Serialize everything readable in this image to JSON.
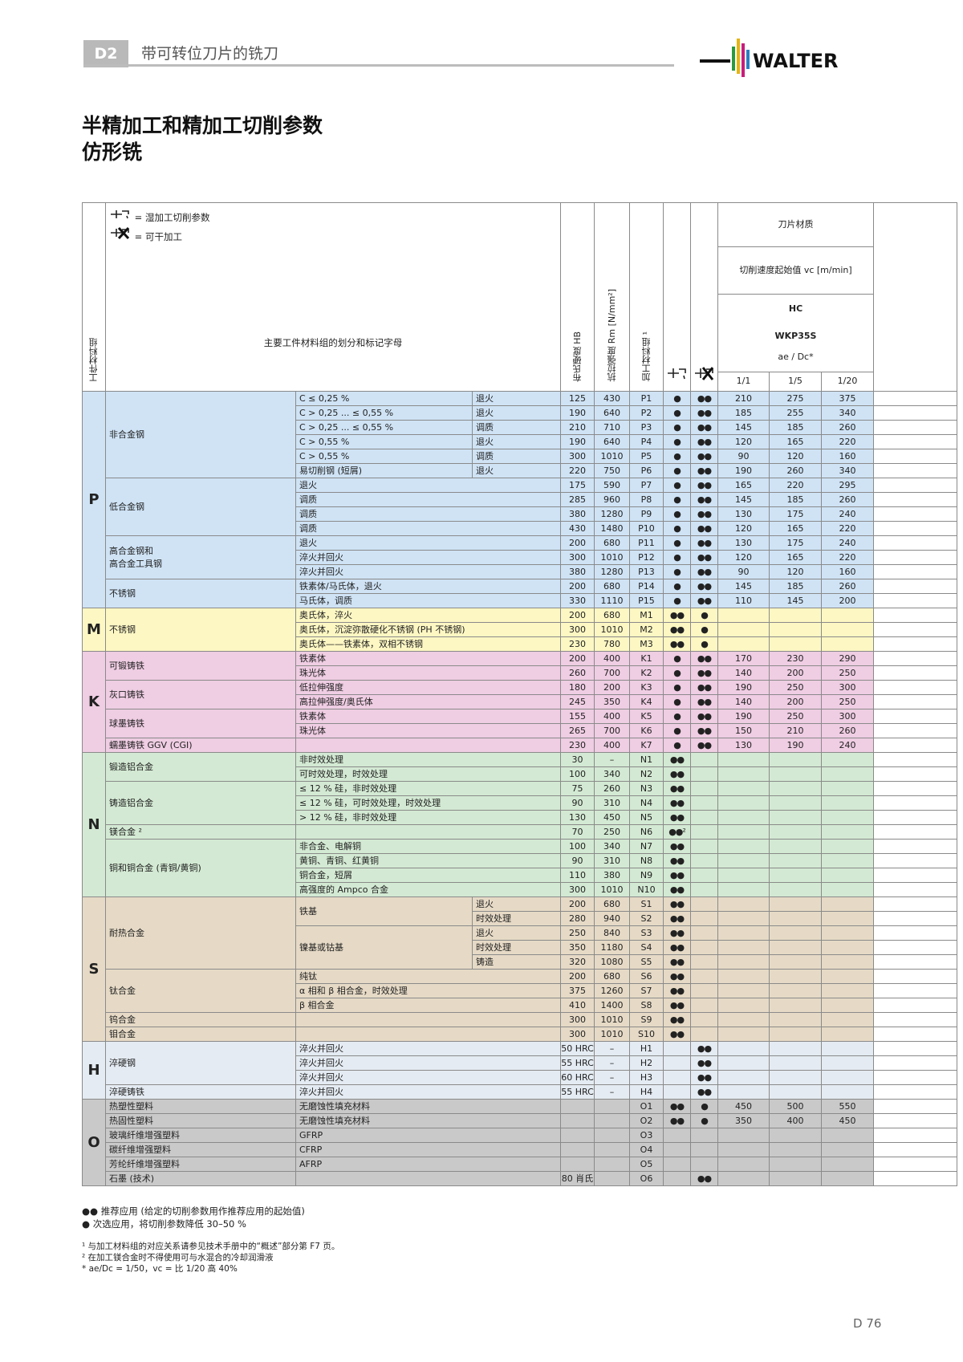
{
  "header": {
    "section_code": "D2",
    "section_title": "带可转位刀片的铣刀",
    "logo_text": "WALTER"
  },
  "title": {
    "line1": "半精加工和精加工切削参数",
    "line2": "仿形铣"
  },
  "key": {
    "wet": "= 湿加工切削参数",
    "dry": "= 可干加工"
  },
  "columns": {
    "material_group": "工件材料组",
    "main": "主要工件材料组的划分和标记字母",
    "hardness": "布氏硬度 HB",
    "strength": "抗拉强度 Rm [N/mm²]",
    "code": "加工材料组 ¹",
    "grade_title": "刀片材质",
    "speed_title": "切削速度起始值 vc [m/min]",
    "grade1": "HC",
    "grade2": "WKP35S",
    "ratio": "ae / Dc*",
    "r1": "1/1",
    "r2": "1/5",
    "r3": "1/20"
  },
  "groups": [
    {
      "letter": "P",
      "class": "gP",
      "rows": [
        {
          "sub": "非合金钢",
          "d1": "C ≤ 0,25 %",
          "d2": "退火",
          "hb": "125",
          "rm": "430",
          "code": "P1",
          "wet": "●",
          "dry": "●●",
          "v1": "210",
          "v5": "275",
          "v20": "375"
        },
        {
          "d1": "C > 0,25 ... ≤ 0,55 %",
          "d2": "退火",
          "hb": "190",
          "rm": "640",
          "code": "P2",
          "wet": "●",
          "dry": "●●",
          "v1": "185",
          "v5": "255",
          "v20": "340"
        },
        {
          "d1": "C > 0,25 ... ≤ 0,55 %",
          "d2": "调质",
          "hb": "210",
          "rm": "710",
          "code": "P3",
          "wet": "●",
          "dry": "●●",
          "v1": "145",
          "v5": "185",
          "v20": "260"
        },
        {
          "d1": "C > 0,55 %",
          "d2": "退火",
          "hb": "190",
          "rm": "640",
          "code": "P4",
          "wet": "●",
          "dry": "●●",
          "v1": "120",
          "v5": "165",
          "v20": "220"
        },
        {
          "d1": "C > 0,55 %",
          "d2": "调质",
          "hb": "300",
          "rm": "1010",
          "code": "P5",
          "wet": "●",
          "dry": "●●",
          "v1": "90",
          "v5": "120",
          "v20": "160"
        },
        {
          "d1": "易切削钢 (短屑)",
          "d2": "退火",
          "hb": "220",
          "rm": "750",
          "code": "P6",
          "wet": "●",
          "dry": "●●",
          "v1": "190",
          "v5": "260",
          "v20": "340"
        },
        {
          "sub": "低合金钢",
          "d1": "退火",
          "hb": "175",
          "rm": "590",
          "code": "P7",
          "wet": "●",
          "dry": "●●",
          "v1": "165",
          "v5": "220",
          "v20": "295"
        },
        {
          "d1": "调质",
          "hb": "285",
          "rm": "960",
          "code": "P8",
          "wet": "●",
          "dry": "●●",
          "v1": "145",
          "v5": "185",
          "v20": "260"
        },
        {
          "d1": "调质",
          "hb": "380",
          "rm": "1280",
          "code": "P9",
          "wet": "●",
          "dry": "●●",
          "v1": "130",
          "v5": "175",
          "v20": "240"
        },
        {
          "d1": "调质",
          "hb": "430",
          "rm": "1480",
          "code": "P10",
          "wet": "●",
          "dry": "●●",
          "v1": "120",
          "v5": "165",
          "v20": "220"
        },
        {
          "sub": "高合金钢和\n高合金工具钢",
          "d1": "退火",
          "hb": "200",
          "rm": "680",
          "code": "P11",
          "wet": "●",
          "dry": "●●",
          "v1": "130",
          "v5": "175",
          "v20": "240"
        },
        {
          "d1": "淬火并回火",
          "hb": "300",
          "rm": "1010",
          "code": "P12",
          "wet": "●",
          "dry": "●●",
          "v1": "120",
          "v5": "165",
          "v20": "220"
        },
        {
          "d1": "淬火并回火",
          "hb": "380",
          "rm": "1280",
          "code": "P13",
          "wet": "●",
          "dry": "●●",
          "v1": "90",
          "v5": "120",
          "v20": "160"
        },
        {
          "sub": "不锈钢",
          "d1": "铁素体/马氏体，退火",
          "hb": "200",
          "rm": "680",
          "code": "P14",
          "wet": "●",
          "dry": "●●",
          "v1": "145",
          "v5": "185",
          "v20": "260"
        },
        {
          "d1": "马氏体，调质",
          "hb": "330",
          "rm": "1110",
          "code": "P15",
          "wet": "●",
          "dry": "●●",
          "v1": "110",
          "v5": "145",
          "v20": "200"
        }
      ]
    },
    {
      "letter": "M",
      "class": "gM",
      "rows": [
        {
          "sub": "不锈钢",
          "d1": "奥氏体，淬火",
          "hb": "200",
          "rm": "680",
          "code": "M1",
          "wet": "●●",
          "dry": "●",
          "v1": "",
          "v5": "",
          "v20": ""
        },
        {
          "d1": "奥氏体，沉淀弥散硬化不锈钢 (PH 不锈钢)",
          "hb": "300",
          "rm": "1010",
          "code": "M2",
          "wet": "●●",
          "dry": "●",
          "v1": "",
          "v5": "",
          "v20": ""
        },
        {
          "d1": "奥氏体——铁素体，双相不锈钢",
          "hb": "230",
          "rm": "780",
          "code": "M3",
          "wet": "●●",
          "dry": "●",
          "v1": "",
          "v5": "",
          "v20": ""
        }
      ]
    },
    {
      "letter": "K",
      "class": "gK",
      "rows": [
        {
          "sub": "可锻铸铁",
          "d1": "铁素体",
          "hb": "200",
          "rm": "400",
          "code": "K1",
          "wet": "●",
          "dry": "●●",
          "v1": "170",
          "v5": "230",
          "v20": "290"
        },
        {
          "d1": "珠光体",
          "hb": "260",
          "rm": "700",
          "code": "K2",
          "wet": "●",
          "dry": "●●",
          "v1": "140",
          "v5": "200",
          "v20": "250"
        },
        {
          "sub": "灰口铸铁",
          "d1": "低拉伸强度",
          "hb": "180",
          "rm": "200",
          "code": "K3",
          "wet": "●",
          "dry": "●●",
          "v1": "190",
          "v5": "250",
          "v20": "300"
        },
        {
          "d1": "高拉伸强度/奥氏体",
          "hb": "245",
          "rm": "350",
          "code": "K4",
          "wet": "●",
          "dry": "●●",
          "v1": "140",
          "v5": "200",
          "v20": "250"
        },
        {
          "sub": "球墨铸铁",
          "d1": "铁素体",
          "hb": "155",
          "rm": "400",
          "code": "K5",
          "wet": "●",
          "dry": "●●",
          "v1": "190",
          "v5": "250",
          "v20": "300"
        },
        {
          "d1": "珠光体",
          "hb": "265",
          "rm": "700",
          "code": "K6",
          "wet": "●",
          "dry": "●●",
          "v1": "150",
          "v5": "210",
          "v20": "260"
        },
        {
          "sub": "蠕墨铸铁 GGV (CGI)",
          "d1": "",
          "hb": "230",
          "rm": "400",
          "code": "K7",
          "wet": "●",
          "dry": "●●",
          "v1": "130",
          "v5": "190",
          "v20": "240"
        }
      ]
    },
    {
      "letter": "N",
      "class": "gN",
      "rows": [
        {
          "sub": "锻造铝合金",
          "d1": "非时效处理",
          "hb": "30",
          "rm": "–",
          "code": "N1",
          "wet": "●●",
          "dry": "",
          "v1": "",
          "v5": "",
          "v20": ""
        },
        {
          "d1": "可时效处理，时效处理",
          "hb": "100",
          "rm": "340",
          "code": "N2",
          "wet": "●●",
          "dry": "",
          "v1": "",
          "v5": "",
          "v20": ""
        },
        {
          "sub": "铸造铝合金",
          "d1": "≤ 12 % 硅，非时效处理",
          "hb": "75",
          "rm": "260",
          "code": "N3",
          "wet": "●●",
          "dry": "",
          "v1": "",
          "v5": "",
          "v20": ""
        },
        {
          "d1": "≤ 12 % 硅，可时效处理，时效处理",
          "hb": "90",
          "rm": "310",
          "code": "N4",
          "wet": "●●",
          "dry": "",
          "v1": "",
          "v5": "",
          "v20": ""
        },
        {
          "d1": "> 12 % 硅，非时效处理",
          "hb": "130",
          "rm": "450",
          "code": "N5",
          "wet": "●●",
          "dry": "",
          "v1": "",
          "v5": "",
          "v20": ""
        },
        {
          "sub": "镁合金 ²",
          "d1": "",
          "hb": "70",
          "rm": "250",
          "code": "N6",
          "wet": "●●²",
          "dry": "",
          "v1": "",
          "v5": "",
          "v20": ""
        },
        {
          "sub": "铜和铜合金 (青铜/黄铜)",
          "d1": "非合金、电解铜",
          "hb": "100",
          "rm": "340",
          "code": "N7",
          "wet": "●●",
          "dry": "",
          "v1": "",
          "v5": "",
          "v20": ""
        },
        {
          "d1": "黄铜、青铜、红黄铜",
          "hb": "90",
          "rm": "310",
          "code": "N8",
          "wet": "●●",
          "dry": "",
          "v1": "",
          "v5": "",
          "v20": ""
        },
        {
          "d1": "铜合金，短屑",
          "hb": "110",
          "rm": "380",
          "code": "N9",
          "wet": "●●",
          "dry": "",
          "v1": "",
          "v5": "",
          "v20": ""
        },
        {
          "d1": "高强度的 Ampco 合金",
          "hb": "300",
          "rm": "1010",
          "code": "N10",
          "wet": "●●",
          "dry": "",
          "v1": "",
          "v5": "",
          "v20": ""
        }
      ]
    },
    {
      "letter": "S",
      "class": "gS",
      "rows": [
        {
          "sub": "耐热合金",
          "d1": "铁基",
          "d2": "退火",
          "hb": "200",
          "rm": "680",
          "code": "S1",
          "wet": "●●",
          "dry": "",
          "v1": "",
          "v5": "",
          "v20": ""
        },
        {
          "d2": "时效处理",
          "hb": "280",
          "rm": "940",
          "code": "S2",
          "wet": "●●",
          "dry": "",
          "v1": "",
          "v5": "",
          "v20": ""
        },
        {
          "d1": "镍基或钴基",
          "d2": "退火",
          "hb": "250",
          "rm": "840",
          "code": "S3",
          "wet": "●●",
          "dry": "",
          "v1": "",
          "v5": "",
          "v20": ""
        },
        {
          "d2": "时效处理",
          "hb": "350",
          "rm": "1180",
          "code": "S4",
          "wet": "●●",
          "dry": "",
          "v1": "",
          "v5": "",
          "v20": ""
        },
        {
          "d2": "铸造",
          "hb": "320",
          "rm": "1080",
          "code": "S5",
          "wet": "●●",
          "dry": "",
          "v1": "",
          "v5": "",
          "v20": ""
        },
        {
          "sub": "钛合金",
          "d1": "纯钛",
          "hb": "200",
          "rm": "680",
          "code": "S6",
          "wet": "●●",
          "dry": "",
          "v1": "",
          "v5": "",
          "v20": ""
        },
        {
          "d1": "α 相和 β 相合金，时效处理",
          "hb": "375",
          "rm": "1260",
          "code": "S7",
          "wet": "●●",
          "dry": "",
          "v1": "",
          "v5": "",
          "v20": ""
        },
        {
          "d1": "β 相合金",
          "hb": "410",
          "rm": "1400",
          "code": "S8",
          "wet": "●●",
          "dry": "",
          "v1": "",
          "v5": "",
          "v20": ""
        },
        {
          "sub": "钨合金",
          "d1": "",
          "hb": "300",
          "rm": "1010",
          "code": "S9",
          "wet": "●●",
          "dry": "",
          "v1": "",
          "v5": "",
          "v20": ""
        },
        {
          "sub": "钼合金",
          "d1": "",
          "hb": "300",
          "rm": "1010",
          "code": "S10",
          "wet": "●●",
          "dry": "",
          "v1": "",
          "v5": "",
          "v20": ""
        }
      ]
    },
    {
      "letter": "H",
      "class": "gH",
      "rows": [
        {
          "sub": "淬硬钢",
          "d1": "淬火并回火",
          "hb": "50 HRC",
          "rm": "–",
          "code": "H1",
          "wet": "",
          "dry": "●●",
          "v1": "",
          "v5": "",
          "v20": ""
        },
        {
          "d1": "淬火并回火",
          "hb": "55 HRC",
          "rm": "–",
          "code": "H2",
          "wet": "",
          "dry": "●●",
          "v1": "",
          "v5": "",
          "v20": ""
        },
        {
          "d1": "淬火并回火",
          "hb": "60 HRC",
          "rm": "–",
          "code": "H3",
          "wet": "",
          "dry": "●●",
          "v1": "",
          "v5": "",
          "v20": ""
        },
        {
          "sub": "淬硬铸铁",
          "d1": "淬火并回火",
          "hb": "55 HRC",
          "rm": "–",
          "code": "H4",
          "wet": "",
          "dry": "●●",
          "v1": "",
          "v5": "",
          "v20": ""
        }
      ]
    },
    {
      "letter": "O",
      "class": "gO",
      "rows": [
        {
          "sub": "热塑性塑料",
          "d1": "无磨蚀性填充材料",
          "hb": "",
          "rm": "",
          "code": "O1",
          "wet": "●●",
          "dry": "●",
          "v1": "450",
          "v5": "500",
          "v20": "550"
        },
        {
          "sub": "热固性塑料",
          "d1": "无磨蚀性填充材料",
          "hb": "",
          "rm": "",
          "code": "O2",
          "wet": "●●",
          "dry": "●",
          "v1": "350",
          "v5": "400",
          "v20": "450"
        },
        {
          "sub": "玻璃纤维增强塑料",
          "d1": "GFRP",
          "hb": "",
          "rm": "",
          "code": "O3",
          "wet": "",
          "dry": "",
          "v1": "",
          "v5": "",
          "v20": ""
        },
        {
          "sub": "碳纤维增强塑料",
          "d1": "CFRP",
          "hb": "",
          "rm": "",
          "code": "O4",
          "wet": "",
          "dry": "",
          "v1": "",
          "v5": "",
          "v20": ""
        },
        {
          "sub": "芳纶纤维增强塑料",
          "d1": "AFRP",
          "hb": "",
          "rm": "",
          "code": "O5",
          "wet": "",
          "dry": "",
          "v1": "",
          "v5": "",
          "v20": ""
        },
        {
          "sub": "石墨 (技术)",
          "d1": "",
          "hb": "80 肖氏",
          "rm": "",
          "code": "O6",
          "wet": "",
          "dry": "●●",
          "v1": "",
          "v5": "",
          "v20": ""
        }
      ]
    }
  ],
  "legend": {
    "primary": "●●  推荐应用 (给定的切削参数用作推荐应用的起始值)",
    "secondary": "●    次选应用，将切削参数降低 30–50 %"
  },
  "footnotes": {
    "n1": "¹ 与加工材料组的对应关系请参见技术手册中的“概述”部分第 F7 页。",
    "n2": "² 在加工镁合金时不得使用可与水混合的冷却润滑液",
    "n3": "* ae/Dc = 1/50，vc = 比 1/20 高 40%"
  },
  "page_number": "D 76"
}
